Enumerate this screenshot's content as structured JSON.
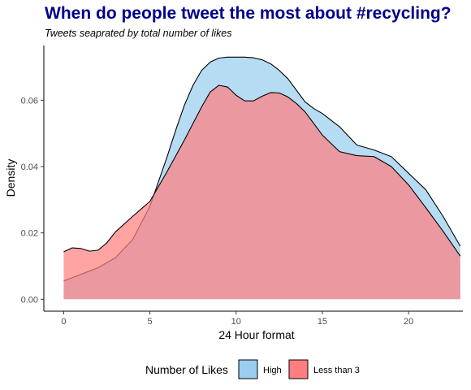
{
  "colors": {
    "title": "#00008B",
    "high": "#9ACEF0",
    "less_than_3": "#FF7F80",
    "axis": "#000000",
    "tick_label": "#4d4d4d"
  },
  "chart_data": {
    "type": "area",
    "title": "When do people tweet the most about #recycling?",
    "subtitle": "Tweets seaprated by total number of likes",
    "xlabel": "24 Hour format",
    "ylabel": "Density",
    "xlim": [
      -1.15,
      23.15
    ],
    "ylim": [
      -0.0036,
      0.0765
    ],
    "x_ticks": [
      0,
      5,
      10,
      15,
      20
    ],
    "x_tick_labels": [
      "0",
      "5",
      "10",
      "15",
      "20"
    ],
    "y_ticks": [
      0.0,
      0.02,
      0.04,
      0.06
    ],
    "y_tick_labels": [
      "0.00",
      "0.02",
      "0.04",
      "0.06"
    ],
    "grid": false,
    "legend": {
      "title": "Number of Likes",
      "position": "bottom"
    },
    "series": [
      {
        "name": "High",
        "color": "#9ACEF0",
        "x": [
          0,
          1,
          2,
          3,
          4,
          5,
          6,
          6.5,
          7,
          7.5,
          8,
          8.5,
          9,
          9.5,
          10,
          10.5,
          11,
          11.5,
          12,
          12.5,
          13,
          13.5,
          14,
          14.5,
          15,
          16,
          17,
          18,
          19,
          20,
          21,
          22,
          23
        ],
        "y": [
          0.0055,
          0.0075,
          0.0095,
          0.0125,
          0.018,
          0.028,
          0.043,
          0.051,
          0.0585,
          0.0645,
          0.069,
          0.0715,
          0.0727,
          0.073,
          0.073,
          0.073,
          0.0728,
          0.0722,
          0.071,
          0.069,
          0.0665,
          0.063,
          0.0595,
          0.0575,
          0.056,
          0.052,
          0.0465,
          0.045,
          0.043,
          0.038,
          0.033,
          0.025,
          0.016
        ]
      },
      {
        "name": "Less than 3",
        "color": "#FF7F80",
        "x": [
          0,
          0.5,
          1,
          1.5,
          2,
          2.5,
          3,
          4,
          5,
          6,
          7,
          8,
          8.5,
          9,
          9.5,
          10,
          10.5,
          11,
          11.5,
          12,
          12.5,
          13,
          13.5,
          14,
          14.5,
          15,
          16,
          17,
          18,
          19,
          20,
          21,
          22,
          23
        ],
        "y": [
          0.0143,
          0.0155,
          0.0153,
          0.0145,
          0.0148,
          0.017,
          0.0203,
          0.025,
          0.0295,
          0.0385,
          0.048,
          0.058,
          0.0625,
          0.0645,
          0.064,
          0.0615,
          0.0598,
          0.0598,
          0.0612,
          0.0623,
          0.0622,
          0.061,
          0.059,
          0.0565,
          0.053,
          0.0495,
          0.0445,
          0.0433,
          0.043,
          0.04,
          0.0345,
          0.0276,
          0.0205,
          0.013
        ]
      }
    ]
  }
}
